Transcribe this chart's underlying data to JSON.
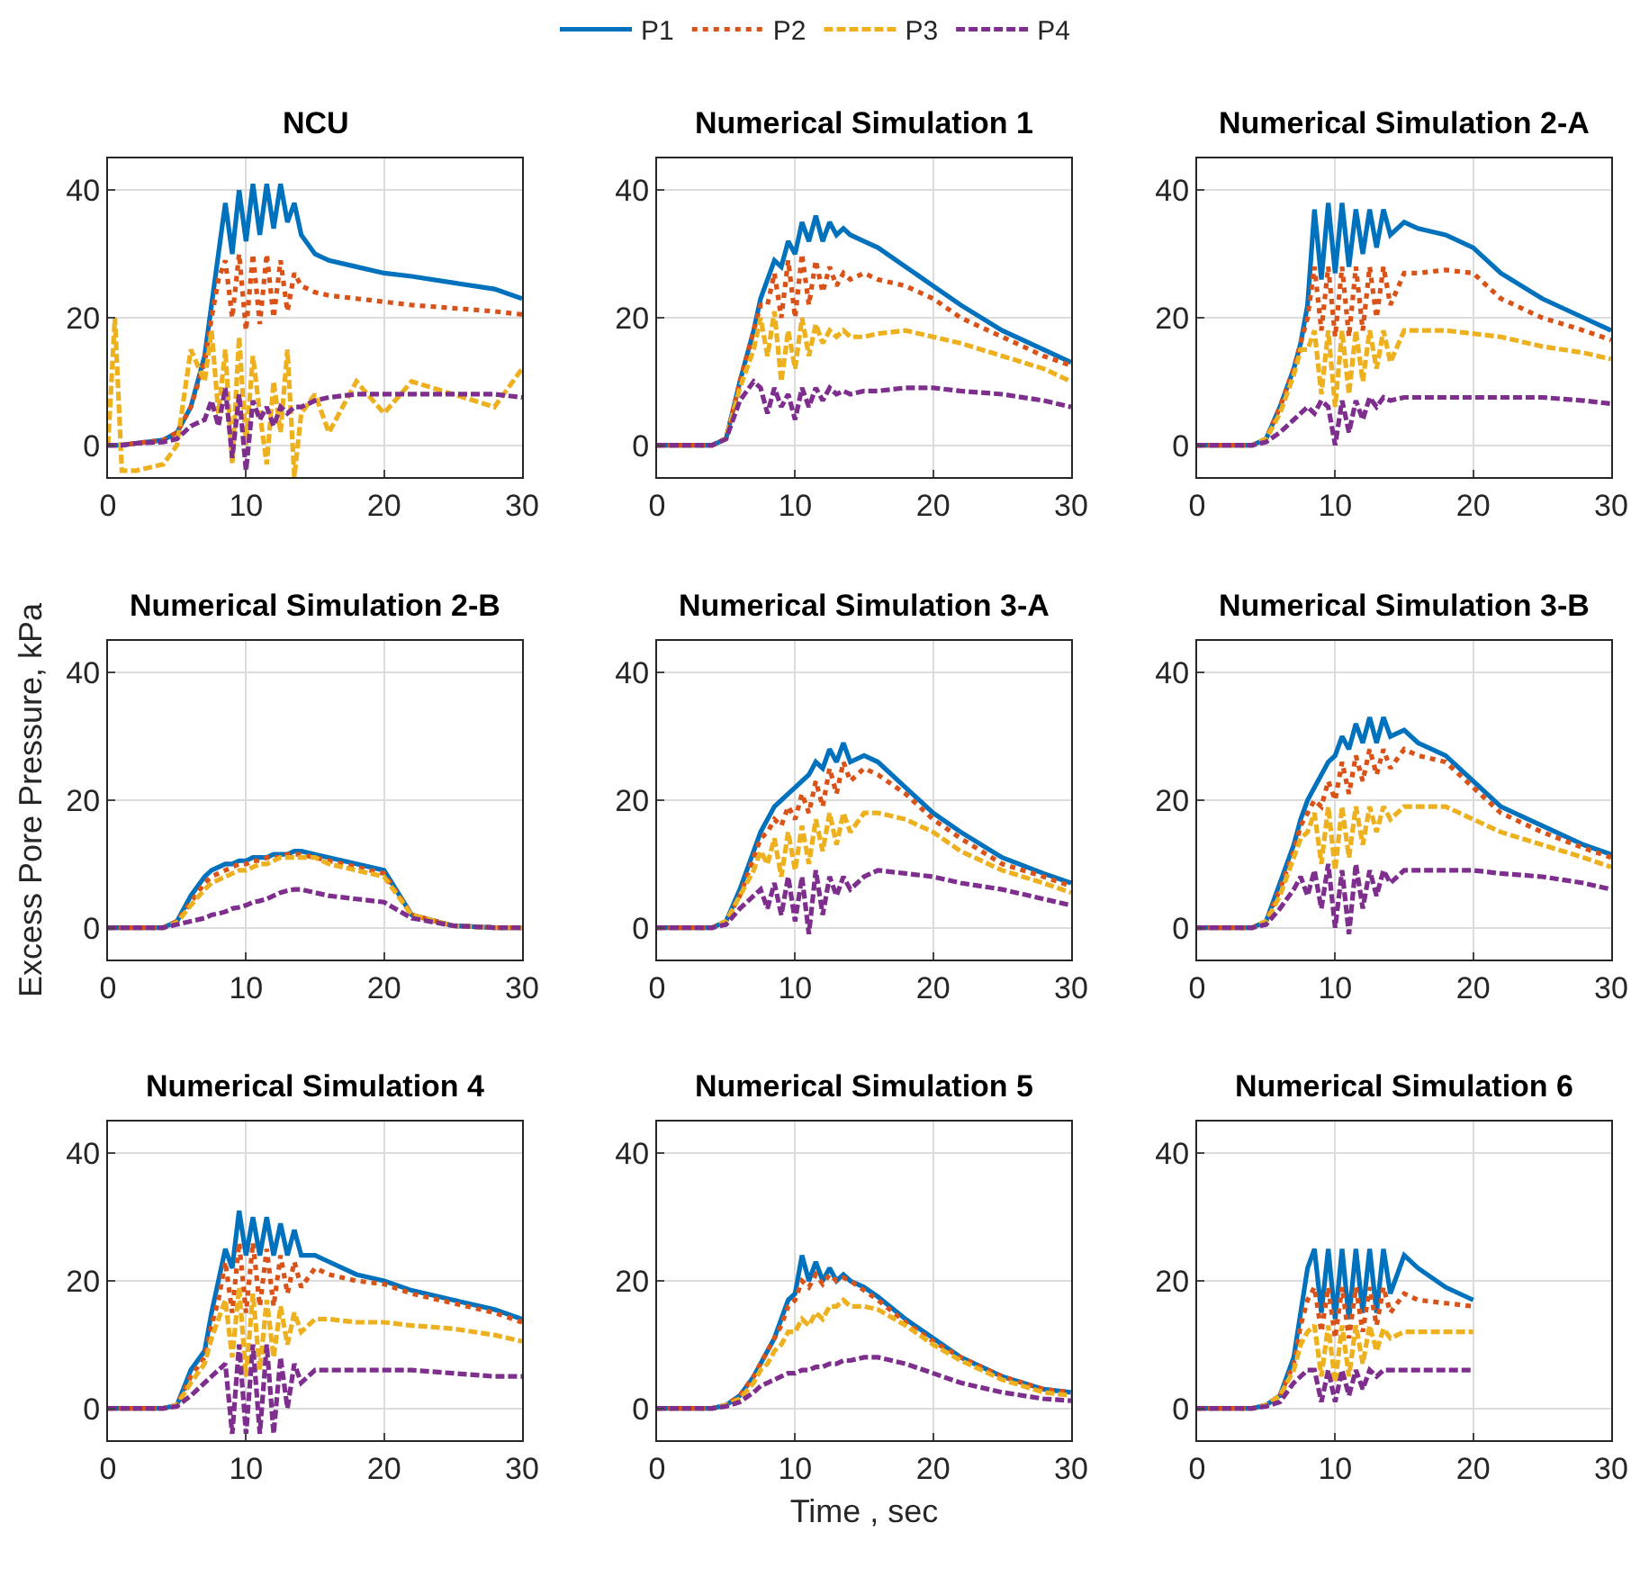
{
  "chart_data": [
    {
      "type": "line",
      "title": "NCU",
      "legend": "top",
      "grid": true,
      "xlim": [
        0,
        30
      ],
      "ylim": [
        -5,
        45
      ],
      "xticks": [
        0,
        10,
        20,
        30
      ],
      "yticks": [
        0,
        20,
        40
      ],
      "x": [
        0,
        0.5,
        1,
        2,
        4,
        5,
        6,
        7,
        7.5,
        8,
        8.5,
        9,
        9.5,
        10,
        10.5,
        11,
        11.5,
        12,
        12.5,
        13,
        13.5,
        14,
        15,
        16,
        18,
        20,
        22,
        25,
        28,
        30
      ],
      "series": [
        {
          "name": "P1",
          "color": "#0072bd",
          "line_style": "solid",
          "values": [
            0,
            0,
            0,
            0.3,
            0.8,
            2,
            6,
            14,
            22,
            30,
            38,
            30,
            40,
            32,
            41,
            33,
            41,
            34,
            41,
            35,
            38,
            33,
            30,
            29,
            28,
            27,
            26.5,
            25.5,
            24.5,
            23
          ]
        },
        {
          "name": "P2",
          "color": "#d95319",
          "line_style": "dotted",
          "values": [
            0,
            0,
            0,
            0.3,
            0.8,
            2,
            6,
            13,
            20,
            26,
            29,
            20,
            30,
            18,
            30,
            19,
            30,
            20,
            29,
            21,
            27,
            25,
            24,
            23.5,
            23,
            22.5,
            22,
            21.5,
            21,
            20.5
          ]
        },
        {
          "name": "P3",
          "color": "#edb120",
          "line_style": "dashed",
          "values": [
            0,
            20,
            -4,
            -4,
            -3,
            0,
            15,
            10,
            18,
            5,
            15,
            -3,
            17,
            0,
            14,
            5,
            -3,
            10,
            2,
            15,
            -5,
            5,
            8,
            2,
            10,
            5,
            10,
            8,
            6,
            12
          ]
        },
        {
          "name": "P4",
          "color": "#7e2f8e",
          "line_style": "dashed",
          "values": [
            0,
            0,
            0,
            0.3,
            0.5,
            1,
            3,
            4,
            7,
            3,
            9,
            -2,
            8,
            -4,
            7,
            4,
            6,
            3,
            6,
            5,
            6,
            6,
            7,
            7.5,
            8,
            8,
            8,
            8,
            8,
            7.5
          ]
        }
      ]
    },
    {
      "type": "line",
      "title": "Numerical Simulation 1",
      "grid": true,
      "xlim": [
        0,
        30
      ],
      "ylim": [
        -5,
        45
      ],
      "xticks": [
        0,
        10,
        20,
        30
      ],
      "yticks": [
        0,
        20,
        40
      ],
      "x": [
        0,
        2,
        4,
        5,
        6,
        7,
        7.5,
        8,
        8.5,
        9,
        9.5,
        10,
        10.5,
        11,
        11.5,
        12,
        12.5,
        13,
        13.5,
        14,
        15,
        16,
        18,
        20,
        22,
        25,
        28,
        30
      ],
      "series": [
        {
          "color": "#0072bd",
          "line_style": "solid",
          "values": [
            0,
            0,
            0,
            1,
            10,
            18,
            23,
            26,
            29,
            28,
            32,
            30,
            35,
            32,
            36,
            32,
            35,
            33,
            34,
            33,
            32,
            31,
            28,
            25,
            22,
            18,
            15,
            13
          ]
        },
        {
          "color": "#d95319",
          "line_style": "dotted",
          "values": [
            0,
            0,
            0,
            1,
            10,
            18,
            22,
            22,
            27,
            20,
            29,
            20,
            30,
            22,
            29,
            24,
            28,
            25,
            27,
            26,
            27,
            26,
            25,
            23,
            20,
            17,
            14,
            12.5
          ]
        },
        {
          "color": "#edb120",
          "line_style": "dashed",
          "values": [
            0,
            0,
            0,
            1,
            9,
            15,
            20,
            14,
            21,
            10,
            18,
            12,
            20,
            14,
            19,
            16,
            18,
            17,
            18,
            17,
            17,
            17.5,
            18,
            17,
            16,
            14,
            12,
            10
          ]
        },
        {
          "color": "#7e2f8e",
          "line_style": "dashed",
          "values": [
            0,
            0,
            0,
            1,
            7,
            10,
            9,
            5,
            9,
            6,
            8,
            4,
            9,
            6,
            9,
            7,
            9,
            8,
            8.5,
            8,
            8.5,
            8.5,
            9,
            9,
            8.5,
            8,
            7,
            6
          ]
        }
      ]
    },
    {
      "type": "line",
      "title": "Numerical Simulation 2-A",
      "grid": true,
      "xlim": [
        0,
        30
      ],
      "ylim": [
        -5,
        45
      ],
      "xticks": [
        0,
        10,
        20,
        30
      ],
      "yticks": [
        0,
        20,
        40
      ],
      "x": [
        0,
        2,
        4,
        5,
        6,
        7,
        7.5,
        8,
        8.5,
        9,
        9.5,
        10,
        10.5,
        11,
        11.5,
        12,
        12.5,
        13,
        13.5,
        14,
        15,
        16,
        18,
        20,
        22,
        25,
        28,
        30
      ],
      "series": [
        {
          "color": "#0072bd",
          "line_style": "solid",
          "values": [
            0,
            0,
            0,
            1,
            6,
            12,
            16,
            22,
            37,
            26,
            38,
            27,
            38,
            28,
            37,
            30,
            37,
            31,
            37,
            33,
            35,
            34,
            33,
            31,
            27,
            23,
            20,
            18
          ]
        },
        {
          "color": "#d95319",
          "line_style": "dotted",
          "values": [
            0,
            0,
            0,
            1,
            6,
            12,
            16,
            20,
            28,
            18,
            28,
            17,
            28,
            17,
            28,
            18,
            28,
            20,
            28,
            22,
            27,
            27,
            27.5,
            27,
            23,
            20,
            18,
            16.5
          ]
        },
        {
          "color": "#edb120",
          "line_style": "dashed",
          "values": [
            0,
            0,
            0,
            1,
            5,
            11,
            15,
            15,
            18,
            8,
            18,
            6,
            18,
            8,
            18,
            10,
            18,
            12,
            18,
            13,
            18,
            18,
            18,
            17.5,
            17,
            15.5,
            14.5,
            13.5
          ]
        },
        {
          "color": "#7e2f8e",
          "line_style": "dashed",
          "values": [
            0,
            0,
            0,
            0.5,
            2,
            4,
            5,
            6,
            5,
            7,
            6,
            0,
            7,
            2,
            7,
            4,
            7.5,
            6,
            7.5,
            7,
            7.5,
            7.5,
            7.5,
            7.5,
            7.5,
            7.5,
            7,
            6.5
          ]
        }
      ]
    },
    {
      "type": "line",
      "title": "Numerical Simulation 2-B",
      "ylabel": "Excess Pore Pressure, kPa",
      "grid": true,
      "xlim": [
        0,
        30
      ],
      "ylim": [
        -5,
        45
      ],
      "xticks": [
        0,
        10,
        20,
        30
      ],
      "yticks": [
        0,
        20,
        40
      ],
      "x": [
        0,
        2,
        4,
        5,
        6,
        7,
        7.5,
        8,
        8.5,
        9,
        9.5,
        10,
        10.5,
        11,
        11.5,
        12,
        12.5,
        13,
        13.5,
        14,
        15,
        16,
        18,
        20,
        22,
        25,
        28,
        30
      ],
      "series": [
        {
          "color": "#0072bd",
          "line_style": "solid",
          "values": [
            0,
            0,
            0,
            1,
            5,
            8,
            9,
            9.5,
            10,
            10,
            10.5,
            10.5,
            11,
            11,
            11,
            11.5,
            11.5,
            11.5,
            12,
            12,
            11.5,
            11,
            10,
            9,
            2,
            0.3,
            0,
            0
          ]
        },
        {
          "color": "#d95319",
          "line_style": "dotted",
          "values": [
            0,
            0,
            0,
            1,
            4,
            7,
            8,
            8.5,
            9,
            9.5,
            10,
            10,
            10.5,
            10.5,
            11,
            11,
            11,
            11.5,
            11.5,
            11.5,
            11,
            10.5,
            9.5,
            8.5,
            2,
            0.3,
            0,
            0
          ]
        },
        {
          "color": "#edb120",
          "line_style": "dashed",
          "values": [
            0,
            0,
            0,
            0.8,
            3.5,
            6,
            7,
            7.5,
            8,
            8.5,
            9,
            9,
            9.5,
            10,
            10,
            10.5,
            11,
            11,
            11,
            11,
            11,
            10,
            9,
            8,
            2,
            0.3,
            0,
            0
          ]
        },
        {
          "color": "#7e2f8e",
          "line_style": "dashed",
          "values": [
            0,
            0,
            0,
            0.5,
            1,
            1.5,
            2,
            2.2,
            2.5,
            3,
            3.2,
            3.5,
            4,
            4.2,
            4.5,
            5,
            5.5,
            5.8,
            6,
            6,
            5.5,
            5,
            4.5,
            4,
            1.5,
            0.3,
            0,
            0
          ]
        }
      ]
    },
    {
      "type": "line",
      "title": "Numerical Simulation 3-A",
      "grid": true,
      "xlim": [
        0,
        30
      ],
      "ylim": [
        -5,
        45
      ],
      "xticks": [
        0,
        10,
        20,
        30
      ],
      "yticks": [
        0,
        20,
        40
      ],
      "x": [
        0,
        2,
        4,
        5,
        6,
        7,
        7.5,
        8,
        8.5,
        9,
        9.5,
        10,
        10.5,
        11,
        11.5,
        12,
        12.5,
        13,
        13.5,
        14,
        15,
        16,
        18,
        20,
        22,
        25,
        28,
        30
      ],
      "series": [
        {
          "color": "#0072bd",
          "line_style": "solid",
          "values": [
            0,
            0,
            0,
            1,
            6,
            12,
            15,
            17,
            19,
            20,
            21,
            22,
            23,
            24,
            26,
            25,
            28,
            26,
            29,
            26,
            27,
            26,
            22,
            18,
            15,
            11,
            8.5,
            7
          ]
        },
        {
          "color": "#d95319",
          "line_style": "dotted",
          "values": [
            0,
            0,
            0,
            1,
            5,
            11,
            14,
            15,
            17,
            16,
            19,
            17,
            21,
            18,
            23,
            19,
            25,
            21,
            26,
            23,
            25,
            24,
            21,
            17,
            14,
            10,
            8,
            6.5
          ]
        },
        {
          "color": "#edb120",
          "line_style": "dashed",
          "values": [
            0,
            0,
            0,
            1,
            5,
            9,
            12,
            10,
            14,
            8,
            15,
            9,
            16,
            10,
            17,
            12,
            18,
            13,
            18,
            15,
            18,
            18,
            17,
            15,
            12,
            9,
            7,
            5.5
          ]
        },
        {
          "color": "#7e2f8e",
          "line_style": "dashed",
          "values": [
            0,
            0,
            0,
            0.5,
            3,
            5,
            6,
            3,
            7,
            2,
            8,
            1,
            8,
            -1,
            9,
            2,
            8,
            5,
            8,
            6,
            8,
            9,
            8.5,
            8,
            7,
            6,
            4.5,
            3.5
          ]
        }
      ]
    },
    {
      "type": "line",
      "title": "Numerical Simulation 3-B",
      "grid": true,
      "xlim": [
        0,
        30
      ],
      "ylim": [
        -5,
        45
      ],
      "xticks": [
        0,
        10,
        20,
        30
      ],
      "yticks": [
        0,
        20,
        40
      ],
      "x": [
        0,
        2,
        4,
        5,
        6,
        7,
        7.5,
        8,
        8.5,
        9,
        9.5,
        10,
        10.5,
        11,
        11.5,
        12,
        12.5,
        13,
        13.5,
        14,
        15,
        16,
        18,
        20,
        22,
        25,
        28,
        30
      ],
      "series": [
        {
          "color": "#0072bd",
          "line_style": "solid",
          "values": [
            0,
            0,
            0,
            1,
            7,
            13,
            17,
            20,
            22,
            24,
            26,
            27,
            30,
            28,
            32,
            29,
            33,
            29,
            33,
            30,
            31,
            29,
            27,
            23,
            19,
            16,
            13,
            11.5
          ]
        },
        {
          "color": "#d95319",
          "line_style": "dotted",
          "values": [
            0,
            0,
            0,
            1,
            6,
            12,
            16,
            18,
            20,
            19,
            23,
            20,
            26,
            21,
            27,
            23,
            28,
            24,
            28,
            25,
            28,
            27,
            26,
            22,
            18,
            15,
            12.5,
            11
          ]
        },
        {
          "color": "#edb120",
          "line_style": "dashed",
          "values": [
            0,
            0,
            0,
            1,
            5,
            11,
            14,
            15,
            18,
            10,
            19,
            9,
            19,
            11,
            19,
            13,
            19,
            15,
            19,
            17,
            19,
            19,
            19,
            17,
            15,
            13,
            11,
            9.5
          ]
        },
        {
          "color": "#7e2f8e",
          "line_style": "dashed",
          "values": [
            0,
            0,
            0,
            0.5,
            3,
            6,
            8,
            5,
            9,
            3,
            10,
            0,
            9,
            -1,
            10,
            3,
            9,
            5,
            9,
            7,
            9,
            9,
            9,
            9,
            8.5,
            8,
            7,
            6
          ]
        }
      ]
    },
    {
      "type": "line",
      "title": "Numerical Simulation 4",
      "grid": true,
      "xlim": [
        0,
        30
      ],
      "ylim": [
        -5,
        45
      ],
      "xticks": [
        0,
        10,
        20,
        30
      ],
      "yticks": [
        0,
        20,
        40
      ],
      "x": [
        0,
        2,
        4,
        5,
        6,
        7,
        7.5,
        8,
        8.5,
        9,
        9.5,
        10,
        10.5,
        11,
        11.5,
        12,
        12.5,
        13,
        13.5,
        14,
        15,
        16,
        18,
        20,
        22,
        25,
        28,
        30
      ],
      "series": [
        {
          "color": "#0072bd",
          "line_style": "solid",
          "values": [
            0,
            0,
            0,
            0.5,
            6,
            9,
            15,
            20,
            25,
            22,
            31,
            24,
            30,
            24,
            30,
            24,
            29,
            24,
            28,
            24,
            24,
            23,
            21,
            20,
            18.5,
            17,
            15.5,
            14
          ]
        },
        {
          "color": "#d95319",
          "line_style": "dotted",
          "values": [
            0,
            0,
            0,
            0.5,
            5,
            8,
            13,
            17,
            23,
            15,
            26,
            15,
            26,
            16,
            25,
            16,
            24,
            18,
            23,
            19,
            22,
            21,
            20,
            19.5,
            18,
            16.5,
            15,
            13.5
          ]
        },
        {
          "color": "#edb120",
          "line_style": "dashed",
          "values": [
            0,
            0,
            0,
            0.5,
            4,
            7,
            11,
            14,
            17,
            8,
            19,
            5,
            18,
            6,
            17,
            8,
            16,
            10,
            15,
            12,
            14,
            14,
            13.5,
            13.5,
            13,
            12.5,
            11.5,
            10.5
          ]
        },
        {
          "color": "#7e2f8e",
          "line_style": "dashed",
          "values": [
            0,
            0,
            0,
            0.3,
            2,
            4,
            5,
            6,
            7,
            -4,
            10,
            -4,
            10,
            -4,
            10,
            -4,
            8,
            0,
            7,
            4,
            6,
            6,
            6,
            6,
            6,
            5.5,
            5,
            5
          ]
        }
      ]
    },
    {
      "type": "line",
      "title": "Numerical Simulation 5",
      "xlabel": "Time , sec",
      "grid": true,
      "xlim": [
        0,
        30
      ],
      "ylim": [
        -5,
        45
      ],
      "xticks": [
        0,
        10,
        20,
        30
      ],
      "yticks": [
        0,
        20,
        40
      ],
      "x": [
        0,
        2,
        4,
        5,
        6,
        7,
        7.5,
        8,
        8.5,
        9,
        9.5,
        10,
        10.5,
        11,
        11.5,
        12,
        12.5,
        13,
        13.5,
        14,
        15,
        16,
        18,
        20,
        22,
        25,
        28,
        30
      ],
      "series": [
        {
          "color": "#0072bd",
          "line_style": "solid",
          "values": [
            0,
            0,
            0,
            0.5,
            2,
            5,
            7,
            9,
            11,
            14,
            17,
            18,
            24,
            20,
            23,
            20,
            22,
            20,
            21,
            20,
            19,
            17.5,
            14,
            11,
            8,
            5,
            3,
            2.5
          ]
        },
        {
          "color": "#d95319",
          "line_style": "dotted",
          "values": [
            0,
            0,
            0,
            0.5,
            2,
            5,
            7,
            9,
            11,
            13,
            16,
            17,
            20,
            19,
            21,
            19.5,
            21,
            20,
            20.5,
            20,
            18.5,
            17,
            13.5,
            10.5,
            8,
            5,
            3,
            2.5
          ]
        },
        {
          "color": "#edb120",
          "line_style": "dashed",
          "values": [
            0,
            0,
            0,
            0.5,
            1.5,
            4,
            6,
            7,
            9,
            10,
            12,
            12,
            14,
            13,
            15,
            14,
            16,
            16,
            17,
            16,
            16,
            15.5,
            13,
            10,
            7.5,
            4.5,
            2.5,
            2
          ]
        },
        {
          "color": "#7e2f8e",
          "line_style": "dashed",
          "values": [
            0,
            0,
            0,
            0.3,
            1,
            2.5,
            3.5,
            4,
            4.5,
            5,
            5.5,
            5.5,
            6,
            6,
            6.5,
            6.5,
            7,
            7,
            7.5,
            7.5,
            8,
            8,
            7,
            5.5,
            4,
            2.5,
            1.5,
            1.2
          ]
        }
      ]
    },
    {
      "type": "line",
      "title": "Numerical Simulation 6",
      "grid": true,
      "xlim": [
        0,
        30
      ],
      "ylim": [
        -5,
        45
      ],
      "xticks": [
        0,
        10,
        20,
        30
      ],
      "yticks": [
        0,
        20,
        40
      ],
      "x": [
        0,
        2,
        4,
        5,
        6,
        7,
        7.5,
        8,
        8.5,
        9,
        9.5,
        10,
        10.5,
        11,
        11.5,
        12,
        12.5,
        13,
        13.5,
        14,
        15,
        16,
        18,
        20
      ],
      "series": [
        {
          "color": "#0072bd",
          "line_style": "solid",
          "values": [
            0,
            0,
            0,
            0.5,
            2,
            8,
            15,
            22,
            25,
            15,
            25,
            14,
            25,
            14,
            25,
            15,
            25,
            15,
            25,
            18,
            24,
            22,
            19,
            17
          ]
        },
        {
          "color": "#d95319",
          "line_style": "dotted",
          "values": [
            0,
            0,
            0,
            0.5,
            2,
            7,
            13,
            17,
            19,
            12,
            19,
            11,
            19,
            11,
            19,
            12,
            19,
            13,
            19,
            15,
            18,
            17,
            16.5,
            16
          ]
        },
        {
          "color": "#edb120",
          "line_style": "dashed",
          "values": [
            0,
            0,
            0,
            0.5,
            2,
            6,
            10,
            12,
            13,
            5,
            13,
            4,
            13,
            5,
            13,
            7,
            13,
            9,
            12.5,
            11,
            12,
            12,
            12,
            12
          ]
        },
        {
          "color": "#7e2f8e",
          "line_style": "dashed",
          "values": [
            0,
            0,
            0,
            0.3,
            1,
            4,
            5,
            6,
            6,
            1,
            6,
            1,
            6,
            2,
            6,
            3,
            6,
            5,
            6,
            6,
            6,
            6,
            6,
            6
          ]
        }
      ]
    }
  ]
}
